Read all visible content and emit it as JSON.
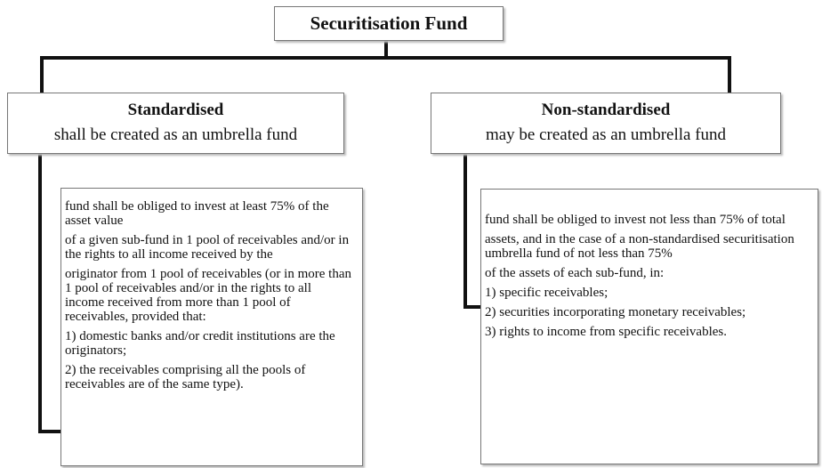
{
  "root": {
    "title": "Securitisation Fund"
  },
  "branches": [
    {
      "title": "Standardised",
      "subtitle": "shall be created as an umbrella fund",
      "details": [
        "fund shall be obliged to invest at least 75% of the asset value",
        "of a given sub-fund in 1 pool of receivables and/or in the rights to all income received by the",
        "originator from 1 pool of receivables (or  in more than 1 pool of receivables and/or in the rights to all income received from more than 1 pool of receivables, provided that:",
        "1) domestic banks and/or credit institutions are the originators;",
        "2) the receivables comprising all the pools of receivables are of the same type)."
      ]
    },
    {
      "title": "Non-standardised",
      "subtitle": "may be created as an umbrella fund",
      "details": [
        "fund shall be obliged to invest not less than 75% of total",
        "assets, and in the case of a non-standardised securitisation umbrella fund of not less than 75%",
        "of the assets of each sub-fund, in:",
        "1) specific receivables;",
        "2) securities incorporating monetary receivables;",
        "3) rights to income from specific receivables."
      ]
    }
  ]
}
